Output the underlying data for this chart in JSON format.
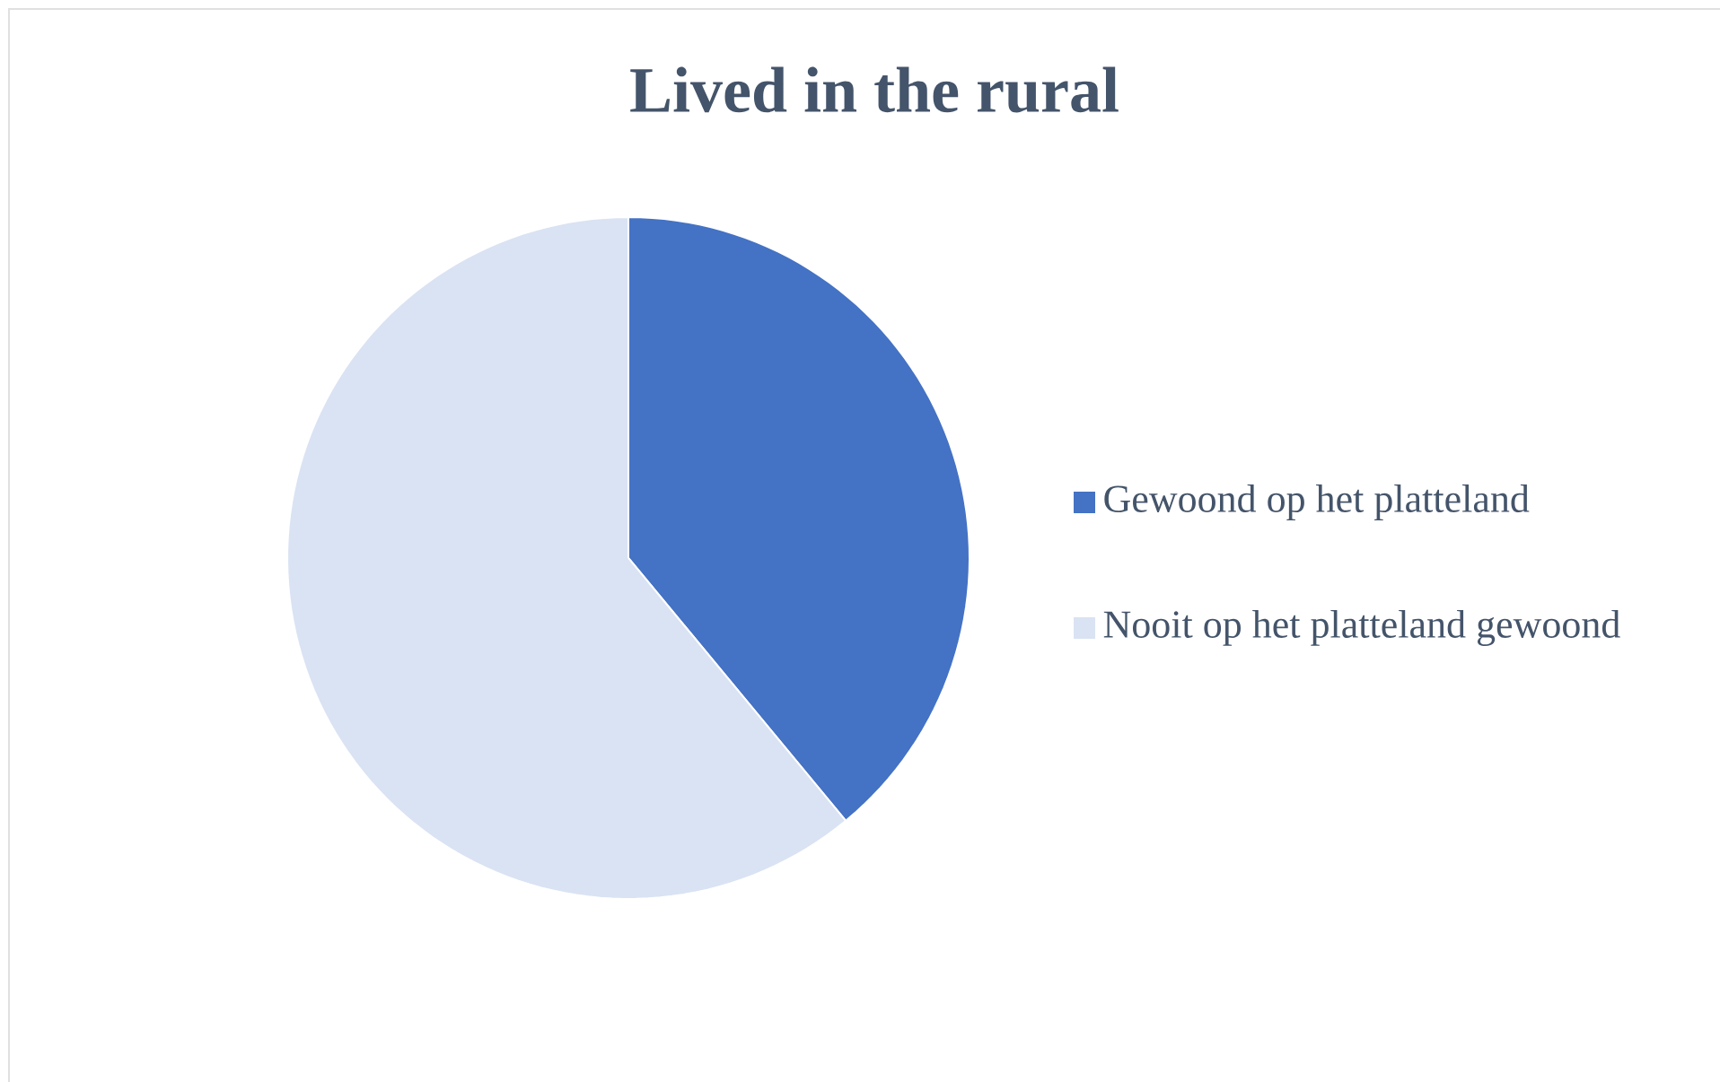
{
  "chart_data": {
    "type": "pie",
    "title": "Lived in the rural",
    "categories": [
      "Gewoond op het platteland",
      "Nooit op het platteland gewoond"
    ],
    "values": [
      39,
      61
    ],
    "colors": [
      "#4472c4",
      "#dae3f3"
    ],
    "legend": "right"
  }
}
